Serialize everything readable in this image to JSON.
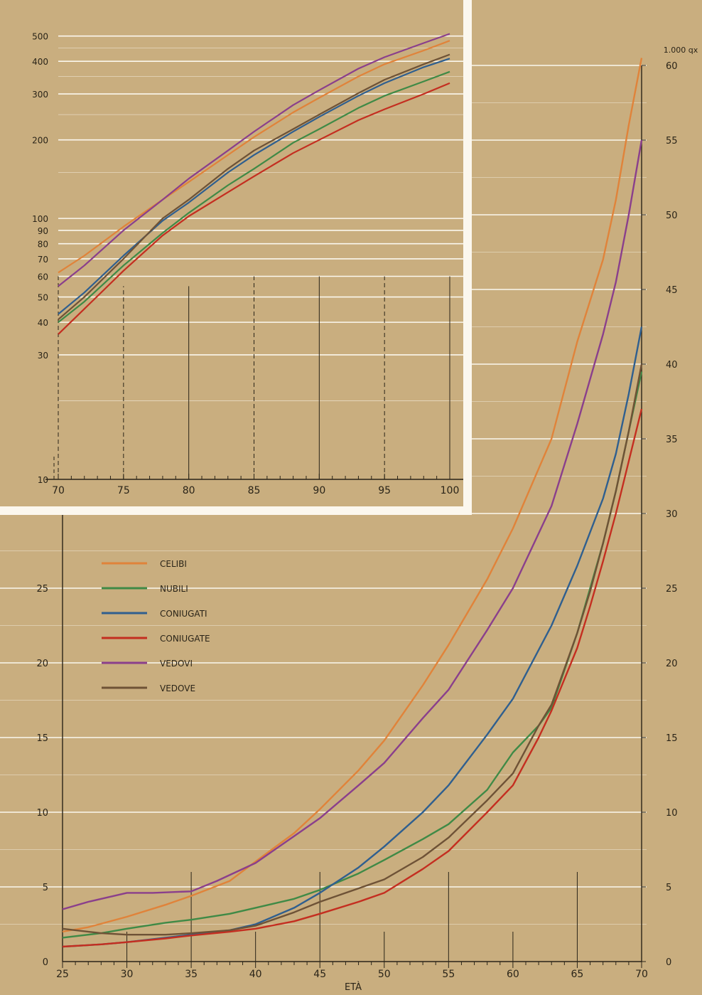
{
  "page": {
    "background": "#c9ae7f",
    "grid_color": "#fbf7ee",
    "axis_color": "#2a2418"
  },
  "chart_data": [
    {
      "id": "main",
      "type": "line",
      "title": "",
      "xlabel": "ETÀ",
      "ylabel_right": "1.000 qx",
      "xlim": [
        25,
        70
      ],
      "ylim": [
        0,
        60
      ],
      "x_ticks": [
        25,
        30,
        35,
        40,
        45,
        50,
        55,
        60,
        65,
        70
      ],
      "x_tick_labels": [
        "25",
        "30",
        "35",
        "40",
        "45",
        "50",
        "55",
        "60",
        "65",
        "70"
      ],
      "y_ticks_left": [
        0,
        5,
        10,
        15,
        20,
        25
      ],
      "y_tick_labels_left": [
        "0",
        "5",
        "10",
        "15",
        "20",
        "25"
      ],
      "y_ticks_right": [
        0,
        5,
        10,
        15,
        20,
        25,
        30,
        35,
        40,
        45,
        50,
        55,
        60
      ],
      "y_tick_labels_right": [
        "0",
        "5",
        "10",
        "15",
        "20",
        "25",
        "30",
        "35",
        "40",
        "45",
        "50",
        "55",
        "60"
      ],
      "grid": true,
      "legend_position": "top-left",
      "series": [
        {
          "name": "CELIBI",
          "color": "#e0833a",
          "x": [
            25,
            27,
            30,
            33,
            35,
            38,
            40,
            43,
            45,
            48,
            50,
            53,
            55,
            58,
            60,
            63,
            65,
            67,
            68,
            69,
            70
          ],
          "y": [
            2.0,
            2.3,
            3.0,
            3.8,
            4.4,
            5.4,
            6.7,
            8.6,
            10.2,
            12.8,
            14.8,
            18.5,
            21.2,
            25.6,
            29.0,
            35.0,
            41.5,
            47.0,
            51.0,
            56.0,
            60.5
          ]
        },
        {
          "name": "NUBILI",
          "color": "#3f8a46",
          "x": [
            25,
            28,
            30,
            33,
            35,
            38,
            40,
            43,
            45,
            48,
            50,
            53,
            55,
            58,
            60,
            62,
            63,
            65,
            66,
            67,
            68,
            69,
            70
          ],
          "y": [
            1.6,
            1.9,
            2.2,
            2.6,
            2.8,
            3.2,
            3.6,
            4.2,
            4.8,
            5.9,
            6.8,
            8.2,
            9.2,
            11.5,
            14.0,
            15.8,
            17.0,
            22.0,
            25.0,
            28.0,
            31.5,
            35.5,
            39.5
          ]
        },
        {
          "name": "CONIUGATI",
          "color": "#2f5f8f",
          "x": [
            25,
            28,
            30,
            33,
            35,
            38,
            40,
            43,
            45,
            48,
            50,
            53,
            55,
            58,
            60,
            63,
            65,
            67,
            68,
            69,
            70
          ],
          "y": [
            1.0,
            1.15,
            1.3,
            1.6,
            1.8,
            2.1,
            2.5,
            3.6,
            4.6,
            6.3,
            7.7,
            10.0,
            11.8,
            15.2,
            17.6,
            22.5,
            26.5,
            31.0,
            34.0,
            38.0,
            42.5
          ]
        },
        {
          "name": "CONIUGATE",
          "color": "#c42e20",
          "x": [
            25,
            28,
            30,
            33,
            35,
            38,
            40,
            43,
            45,
            48,
            50,
            53,
            55,
            58,
            60,
            62,
            63,
            65,
            66,
            67,
            68,
            69,
            70
          ],
          "y": [
            1.0,
            1.15,
            1.3,
            1.55,
            1.75,
            2.0,
            2.2,
            2.7,
            3.2,
            4.0,
            4.6,
            6.2,
            7.4,
            10.0,
            11.8,
            15.0,
            16.8,
            21.0,
            23.8,
            26.8,
            30.0,
            33.5,
            37.0
          ]
        },
        {
          "name": "VEDOVI",
          "color": "#8a3f8c",
          "x": [
            25,
            27,
            30,
            32,
            35,
            37,
            40,
            43,
            45,
            48,
            50,
            53,
            55,
            58,
            60,
            63,
            65,
            67,
            68,
            69,
            70
          ],
          "y": [
            3.5,
            4.0,
            4.6,
            4.6,
            4.7,
            5.4,
            6.6,
            8.4,
            9.6,
            11.8,
            13.3,
            16.3,
            18.2,
            22.2,
            25.0,
            30.5,
            36.0,
            42.0,
            45.5,
            50.0,
            55.0
          ]
        },
        {
          "name": "VEDOVE",
          "color": "#6e5236",
          "x": [
            25,
            26,
            28,
            30,
            33,
            35,
            38,
            40,
            43,
            45,
            48,
            50,
            53,
            55,
            58,
            60,
            62,
            63,
            65,
            66,
            67,
            68,
            69,
            70
          ],
          "y": [
            2.2,
            2.1,
            1.9,
            1.8,
            1.8,
            1.9,
            2.1,
            2.4,
            3.3,
            4.0,
            4.9,
            5.5,
            7.0,
            8.3,
            10.8,
            12.6,
            15.8,
            17.2,
            22.0,
            24.8,
            28.0,
            31.5,
            35.5,
            40.0
          ]
        }
      ]
    },
    {
      "id": "inset",
      "type": "line",
      "title": "",
      "xlabel": "",
      "y_scale": "log",
      "xlim": [
        70,
        100
      ],
      "ylim": [
        10,
        500
      ],
      "x_ticks": [
        70,
        75,
        80,
        85,
        90,
        95,
        100
      ],
      "x_tick_labels": [
        "70",
        "75",
        "80",
        "85",
        "90",
        "95",
        "100"
      ],
      "y_ticks": [
        10,
        30,
        40,
        50,
        60,
        70,
        80,
        90,
        100,
        200,
        300,
        400,
        500
      ],
      "y_tick_labels": [
        "10",
        "30",
        "40",
        "50",
        "60",
        "70",
        "80",
        "90",
        "100",
        "200",
        "300",
        "400",
        "500"
      ],
      "grid": true,
      "series": [
        {
          "name": "CELIBI",
          "color": "#e0833a",
          "x": [
            70,
            72,
            75,
            78,
            80,
            83,
            85,
            88,
            90,
            93,
            95,
            98,
            100
          ],
          "y": [
            62,
            72,
            93,
            118,
            138,
            175,
            205,
            255,
            290,
            350,
            390,
            440,
            480
          ]
        },
        {
          "name": "NUBILI",
          "color": "#3f8a46",
          "x": [
            70,
            72,
            75,
            78,
            80,
            83,
            85,
            88,
            90,
            93,
            95,
            98,
            100
          ],
          "y": [
            40,
            48,
            66,
            88,
            105,
            134,
            155,
            195,
            220,
            265,
            295,
            335,
            365
          ]
        },
        {
          "name": "CONIUGATI",
          "color": "#2f5f8f",
          "x": [
            70,
            72,
            75,
            78,
            80,
            83,
            85,
            88,
            90,
            93,
            95,
            98,
            100
          ],
          "y": [
            43,
            52,
            72,
            98,
            115,
            150,
            175,
            215,
            245,
            295,
            330,
            380,
            410
          ]
        },
        {
          "name": "CONIUGATE",
          "color": "#c42e20",
          "x": [
            70,
            72,
            75,
            78,
            80,
            83,
            85,
            88,
            90,
            93,
            95,
            98,
            100
          ],
          "y": [
            36,
            45,
            63,
            86,
            102,
            126,
            145,
            178,
            200,
            238,
            262,
            300,
            330
          ]
        },
        {
          "name": "VEDOVI",
          "color": "#8a3f8c",
          "x": [
            70,
            72,
            75,
            78,
            80,
            83,
            85,
            88,
            90,
            93,
            95,
            98,
            100
          ],
          "y": [
            55,
            66,
            90,
            118,
            142,
            182,
            215,
            272,
            310,
            375,
            415,
            470,
            510
          ]
        },
        {
          "name": "VEDOVE",
          "color": "#6e5236",
          "x": [
            70,
            72,
            75,
            78,
            80,
            83,
            85,
            88,
            90,
            93,
            95,
            98,
            100
          ],
          "y": [
            41,
            50,
            70,
            100,
            118,
            155,
            182,
            220,
            250,
            302,
            340,
            390,
            425
          ]
        }
      ]
    }
  ]
}
